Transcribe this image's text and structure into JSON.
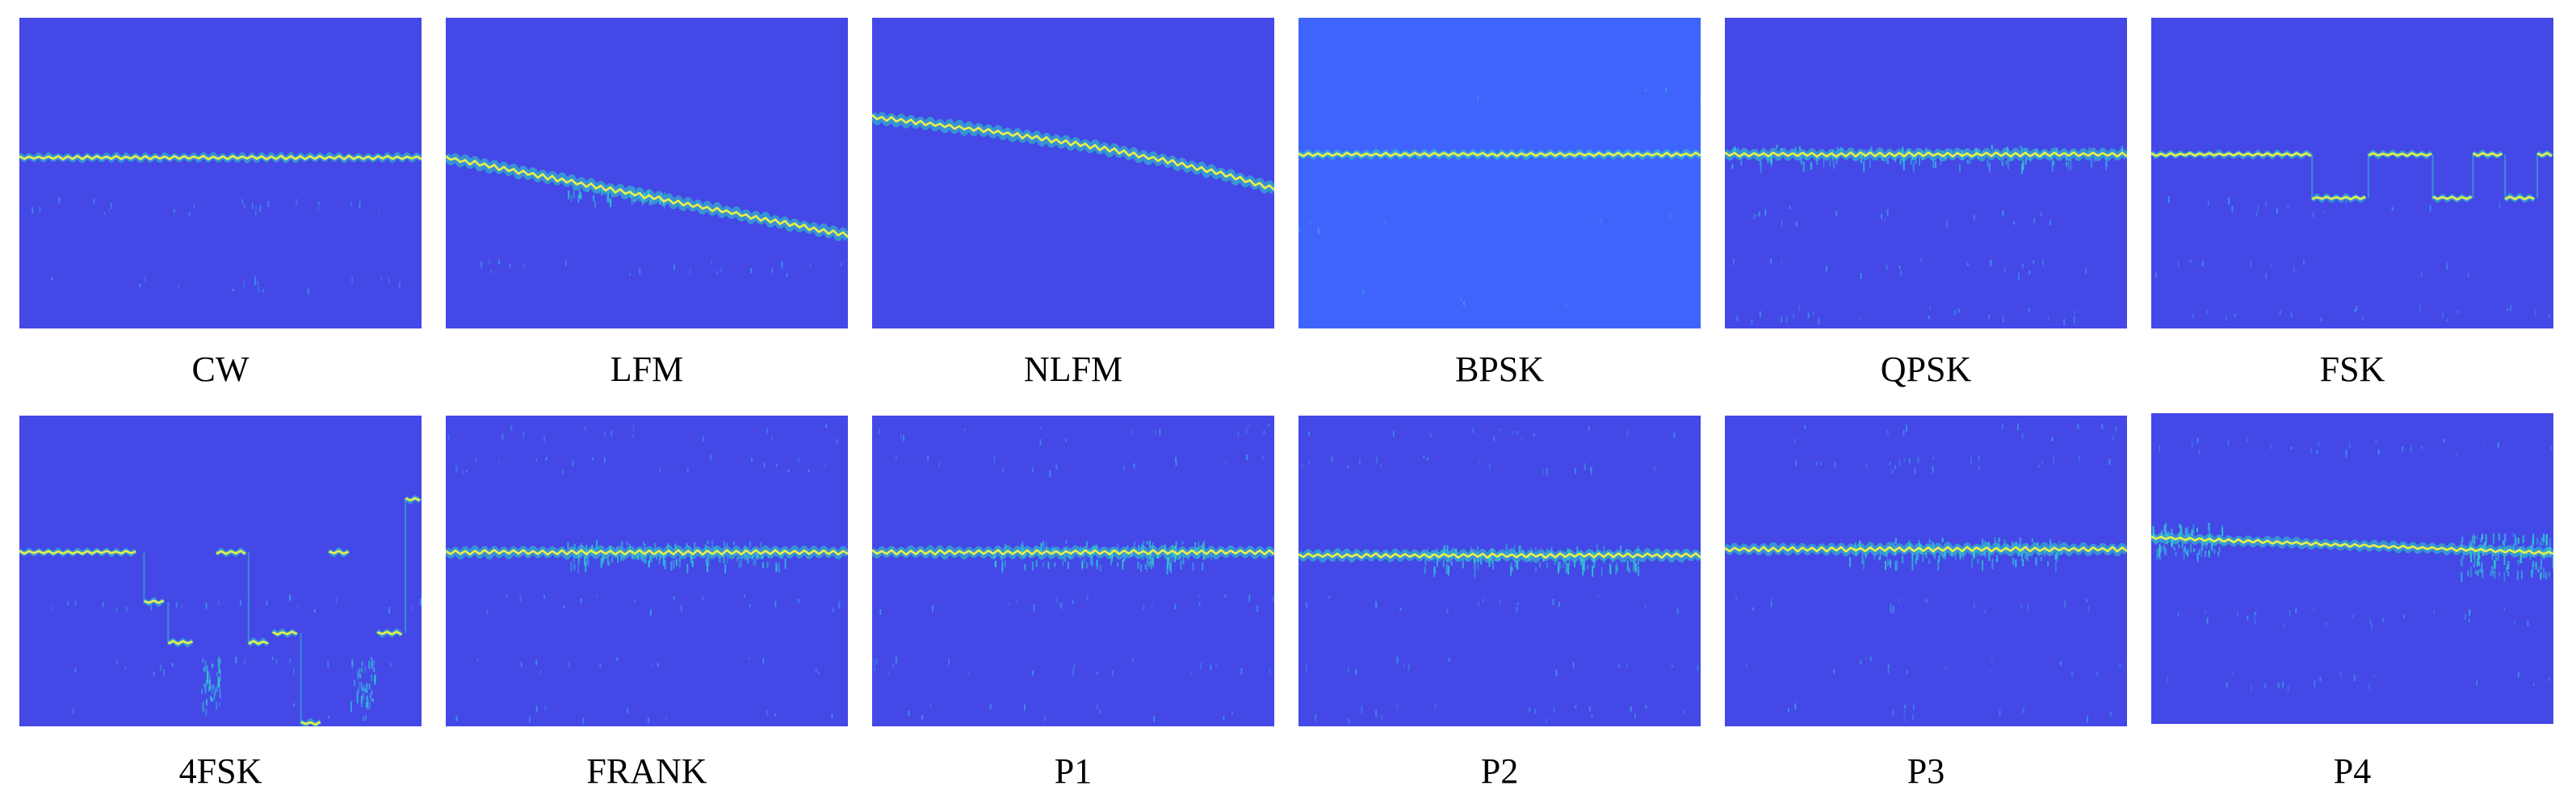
{
  "colors": {
    "background": "#4448e6",
    "background_bpsk": "#3f64fb",
    "trace_core": "#e8f04a",
    "trace_glow": "#2fd0c8",
    "speckle": "#3ab3e8"
  },
  "panels": [
    {
      "label": "CW",
      "pattern": "cw",
      "y": 0.45
    },
    {
      "label": "LFM",
      "pattern": "lfm",
      "y0": 0.45,
      "y1": 0.7
    },
    {
      "label": "NLFM",
      "pattern": "nlfm",
      "y0": 0.32,
      "y1": 0.55
    },
    {
      "label": "BPSK",
      "pattern": "bpsk",
      "y": 0.44
    },
    {
      "label": "QPSK",
      "pattern": "qpsk",
      "y": 0.44
    },
    {
      "label": "FSK",
      "pattern": "fsk",
      "segments": [
        [
          0.0,
          0.4,
          0.44
        ],
        [
          0.4,
          0.54,
          0.58
        ],
        [
          0.54,
          0.7,
          0.44
        ],
        [
          0.7,
          0.8,
          0.58
        ],
        [
          0.8,
          0.88,
          0.44
        ],
        [
          0.88,
          0.96,
          0.58
        ],
        [
          0.96,
          1.0,
          0.44
        ]
      ]
    },
    {
      "label": "4FSK",
      "pattern": "4fsk",
      "segments": [
        [
          0.0,
          0.3,
          0.44
        ],
        [
          0.31,
          0.37,
          0.6
        ],
        [
          0.37,
          0.44,
          0.73
        ],
        [
          0.49,
          0.57,
          0.44
        ],
        [
          0.57,
          0.63,
          0.73
        ],
        [
          0.63,
          0.7,
          0.7
        ],
        [
          0.7,
          0.75,
          0.99
        ],
        [
          0.77,
          0.82,
          0.44
        ],
        [
          0.89,
          0.96,
          0.7
        ],
        [
          0.96,
          1.0,
          0.27
        ]
      ]
    },
    {
      "label": "FRANK",
      "pattern": "phase",
      "y": 0.44
    },
    {
      "label": "P1",
      "pattern": "phase",
      "y": 0.44
    },
    {
      "label": "P2",
      "pattern": "phase",
      "y": 0.45
    },
    {
      "label": "P3",
      "pattern": "phase",
      "y": 0.43
    },
    {
      "label": "P4",
      "pattern": "p4",
      "y0": 0.4,
      "y1": 0.45
    }
  ]
}
